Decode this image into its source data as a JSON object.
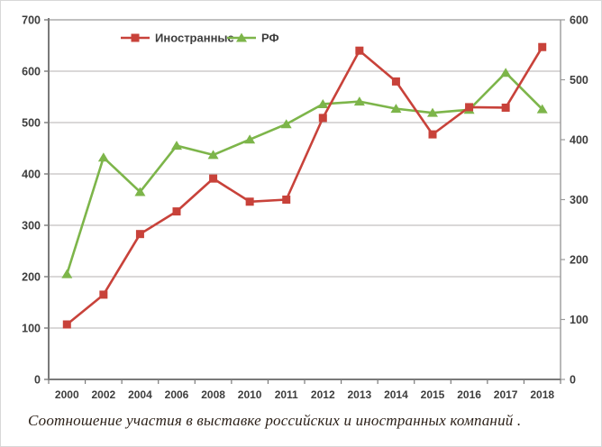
{
  "caption": "Соотношение участия в выставке российских и иностранных компаний .",
  "chart_data": {
    "type": "line",
    "title": "",
    "categories": [
      "2000",
      "2002",
      "2004",
      "2006",
      "2008",
      "2010",
      "2011",
      "2012",
      "2013",
      "2014",
      "2015",
      "2016",
      "2017",
      "2018"
    ],
    "series": [
      {
        "key": "foreign",
        "name": "Иностранные",
        "marker": "square",
        "color": "#c8423a",
        "values": [
          107,
          165,
          283,
          327,
          391,
          346,
          350,
          509,
          640,
          580,
          477,
          530,
          529,
          647
        ]
      },
      {
        "key": "rf",
        "name": "РФ",
        "marker": "triangle",
        "color": "#7db54a",
        "values": [
          205,
          432,
          365,
          455,
          437,
          467,
          497,
          536,
          541,
          527,
          519,
          525,
          597,
          526
        ]
      }
    ],
    "left_axis": {
      "min": 0,
      "max": 700,
      "step": 100,
      "tick_labels": [
        "0",
        "100",
        "200",
        "300",
        "400",
        "500",
        "600",
        "700"
      ]
    },
    "right_axis": {
      "min": 0,
      "max": 600,
      "step": 100,
      "tick_labels": [
        "0",
        "100",
        "200",
        "300",
        "400",
        "500",
        "600"
      ]
    },
    "values_scale": "left_axis",
    "grid": true,
    "legend_position": "top-center",
    "colors": {
      "gridline": "#b5b2b2",
      "axis": "#7a7a7a",
      "plot_border": "#9a9a9a",
      "tick_label": "#3d3d3d",
      "legend_label": "#3d3d3d",
      "caption": "#2a1f17",
      "background": "#ffffff",
      "page_border": "#d8d8d8"
    }
  }
}
